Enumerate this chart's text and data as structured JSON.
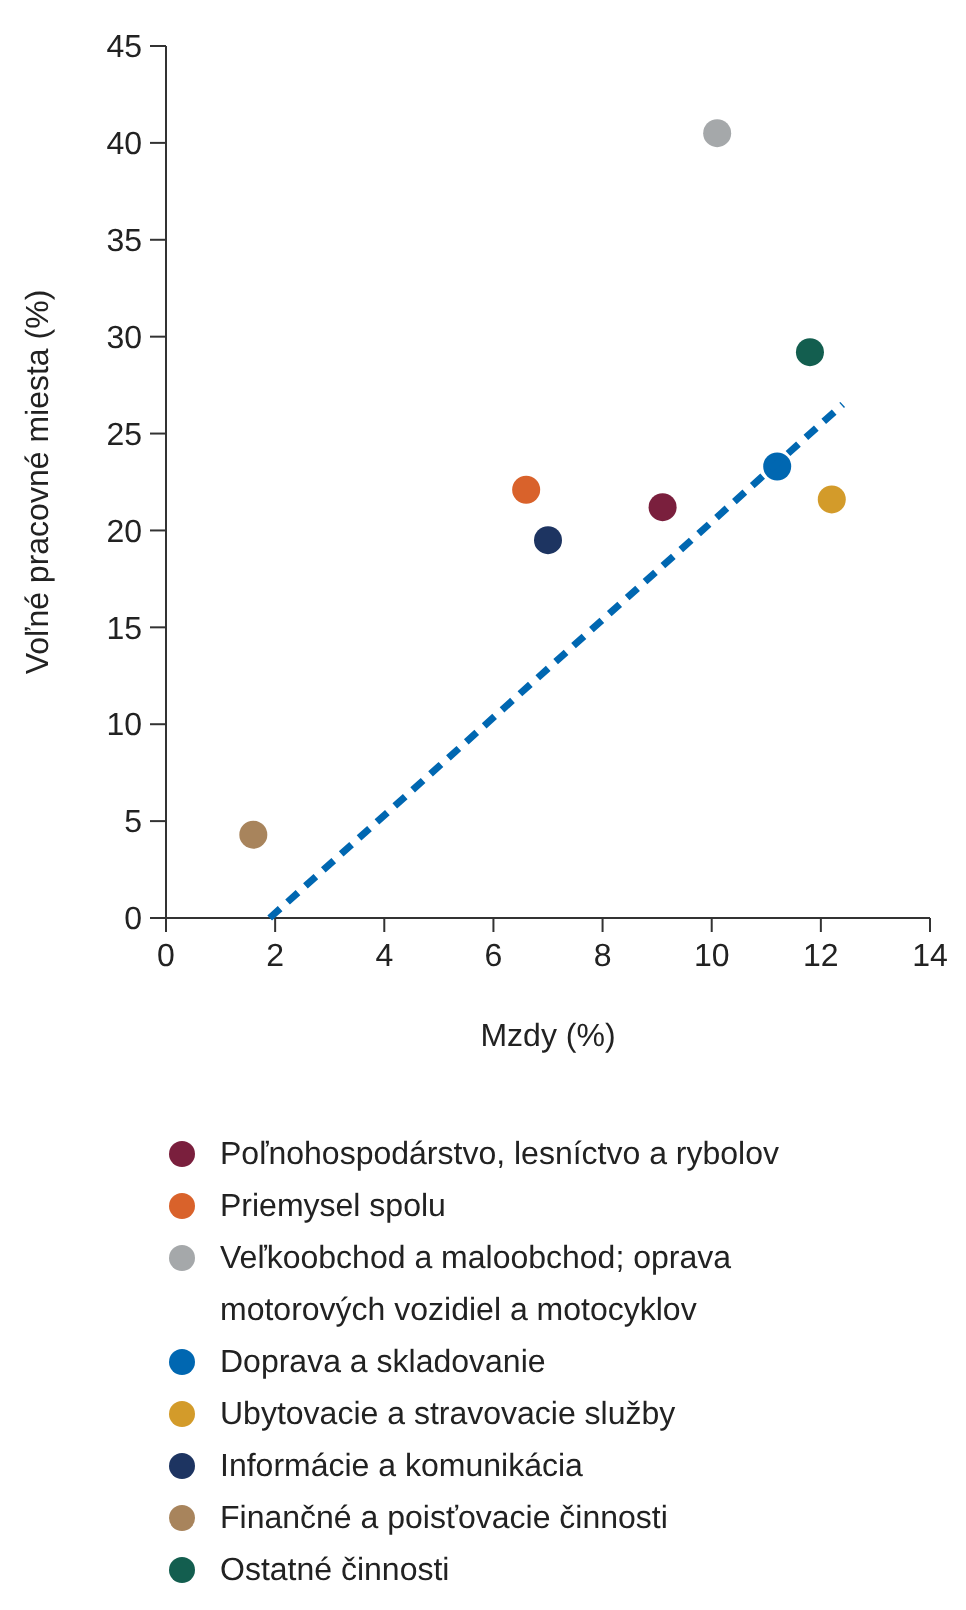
{
  "chart_data": {
    "type": "scatter",
    "xlabel": "Mzdy (%)",
    "ylabel": "Voľné pracovné miesta (%)",
    "xlim": [
      0,
      14
    ],
    "xticks": [
      0,
      2,
      4,
      6,
      8,
      10,
      12,
      14
    ],
    "ylim": [
      0,
      45
    ],
    "yticks": [
      0,
      5,
      10,
      15,
      20,
      25,
      30,
      35,
      40,
      45
    ],
    "grid": false,
    "legend": "bottom",
    "marker": "circle",
    "series": [
      {
        "name": "Poľnohospodárstvo, lesníctvo a rybolov",
        "color": "#7a1f3d",
        "x": [
          9.1
        ],
        "values": [
          21.2
        ]
      },
      {
        "name": "Priemysel spolu",
        "color": "#d9622b",
        "x": [
          6.6
        ],
        "values": [
          22.1
        ]
      },
      {
        "name": "Veľkoobchod a maloobchod; oprava motorových vozidiel a motocyklov",
        "color": "#a5a8aa",
        "x": [
          10.1
        ],
        "values": [
          40.5
        ]
      },
      {
        "name": "Doprava a skladovanie",
        "color": "#0067b1",
        "x": [
          11.2
        ],
        "values": [
          23.3
        ]
      },
      {
        "name": "Ubytovacie a stravovacie služby",
        "color": "#d39b2a",
        "x": [
          12.2
        ],
        "values": [
          21.6
        ]
      },
      {
        "name": "Informácie a komunikácia",
        "color": "#1d3461",
        "x": [
          7.0
        ],
        "values": [
          19.5
        ]
      },
      {
        "name": "Finančné a poisťovacie činnosti",
        "color": "#a8845c",
        "x": [
          1.6
        ],
        "values": [
          4.3
        ]
      },
      {
        "name": "Ostatné činnosti",
        "color": "#135e4f",
        "x": [
          11.8
        ],
        "values": [
          29.2
        ]
      },
      {
        "type": "line",
        "color": "#0067b1",
        "line_style": "dashed",
        "marker": "none",
        "x": [
          1.9,
          12.4
        ],
        "values": [
          0,
          26.5
        ]
      }
    ]
  }
}
